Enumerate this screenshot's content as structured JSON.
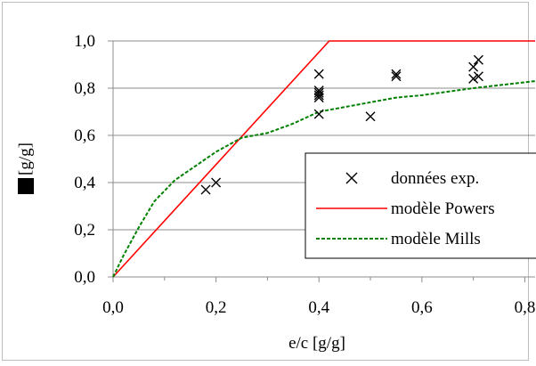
{
  "chart_data": {
    "type": "scatter",
    "xlabel": "e/c [g/g]",
    "ylabel": "[g/g]",
    "ylabel_symbol": "αc",
    "xlim": [
      0,
      0.82
    ],
    "ylim": [
      0,
      1.0
    ],
    "x_ticks": [
      "0,0",
      "0,2",
      "0,4",
      "0,6",
      "0,8"
    ],
    "y_ticks": [
      "0,0",
      "0,2",
      "0,4",
      "0,6",
      "0,8",
      "1,0"
    ],
    "grid": "horizontal",
    "legend_position": "right-center",
    "series": [
      {
        "name": "données exp.",
        "kind": "marker",
        "marker": "x",
        "color": "#000000",
        "points": [
          [
            0.18,
            0.37
          ],
          [
            0.2,
            0.4
          ],
          [
            0.4,
            0.69
          ],
          [
            0.4,
            0.76
          ],
          [
            0.4,
            0.77
          ],
          [
            0.4,
            0.78
          ],
          [
            0.4,
            0.79
          ],
          [
            0.4,
            0.86
          ],
          [
            0.5,
            0.68
          ],
          [
            0.55,
            0.85
          ],
          [
            0.55,
            0.86
          ],
          [
            0.7,
            0.84
          ],
          [
            0.7,
            0.89
          ],
          [
            0.71,
            0.85
          ],
          [
            0.71,
            0.92
          ]
        ]
      },
      {
        "name": "modèle Powers",
        "kind": "line",
        "color": "#ff0000",
        "dash": "solid",
        "points": [
          [
            0.0,
            0.0
          ],
          [
            0.42,
            1.0
          ],
          [
            0.82,
            1.0
          ]
        ]
      },
      {
        "name": "modèle Mills",
        "kind": "line",
        "color": "#008000",
        "dash": "dashed",
        "points": [
          [
            0.0,
            0.0
          ],
          [
            0.02,
            0.09
          ],
          [
            0.05,
            0.21
          ],
          [
            0.08,
            0.32
          ],
          [
            0.12,
            0.41
          ],
          [
            0.2,
            0.53
          ],
          [
            0.25,
            0.59
          ],
          [
            0.3,
            0.61
          ],
          [
            0.35,
            0.65
          ],
          [
            0.4,
            0.7
          ],
          [
            0.45,
            0.72
          ],
          [
            0.5,
            0.74
          ],
          [
            0.55,
            0.76
          ],
          [
            0.6,
            0.77
          ],
          [
            0.7,
            0.8
          ],
          [
            0.82,
            0.83
          ]
        ]
      }
    ]
  }
}
